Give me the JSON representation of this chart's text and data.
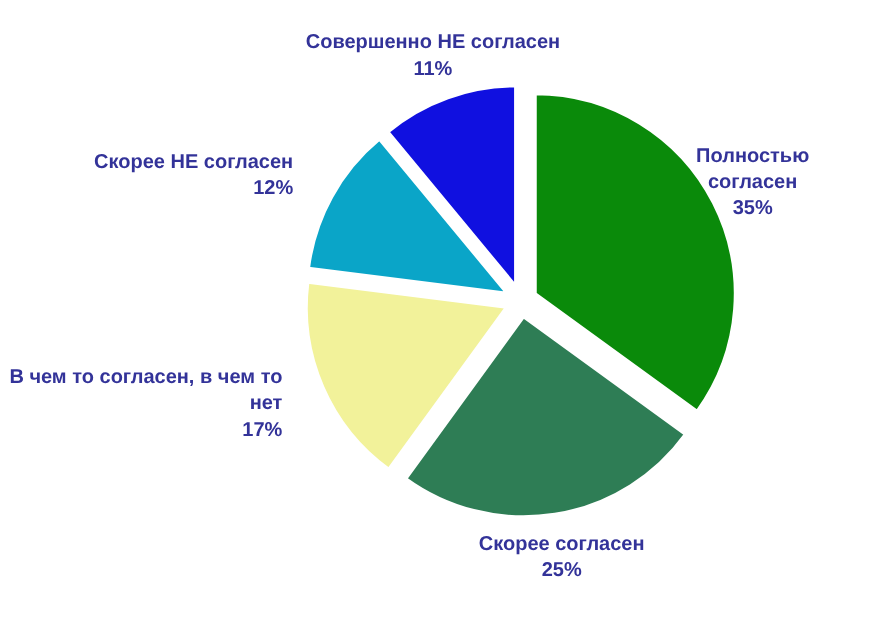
{
  "chart_data": {
    "type": "pie",
    "categories": [
      "Полностью согласен",
      "Скорее согласен",
      "В чем то согласен, в чем то нет",
      "Скорее НЕ согласен",
      "Совершенно НЕ согласен"
    ],
    "values": [
      35,
      25,
      17,
      12,
      11
    ],
    "colors": [
      "#0a8a0a",
      "#2e7d55",
      "#f2f29a",
      "#0aa5c8",
      "#1010e0"
    ],
    "value_labels": [
      "35%",
      "25%",
      "17%",
      "12%",
      "11%"
    ]
  }
}
